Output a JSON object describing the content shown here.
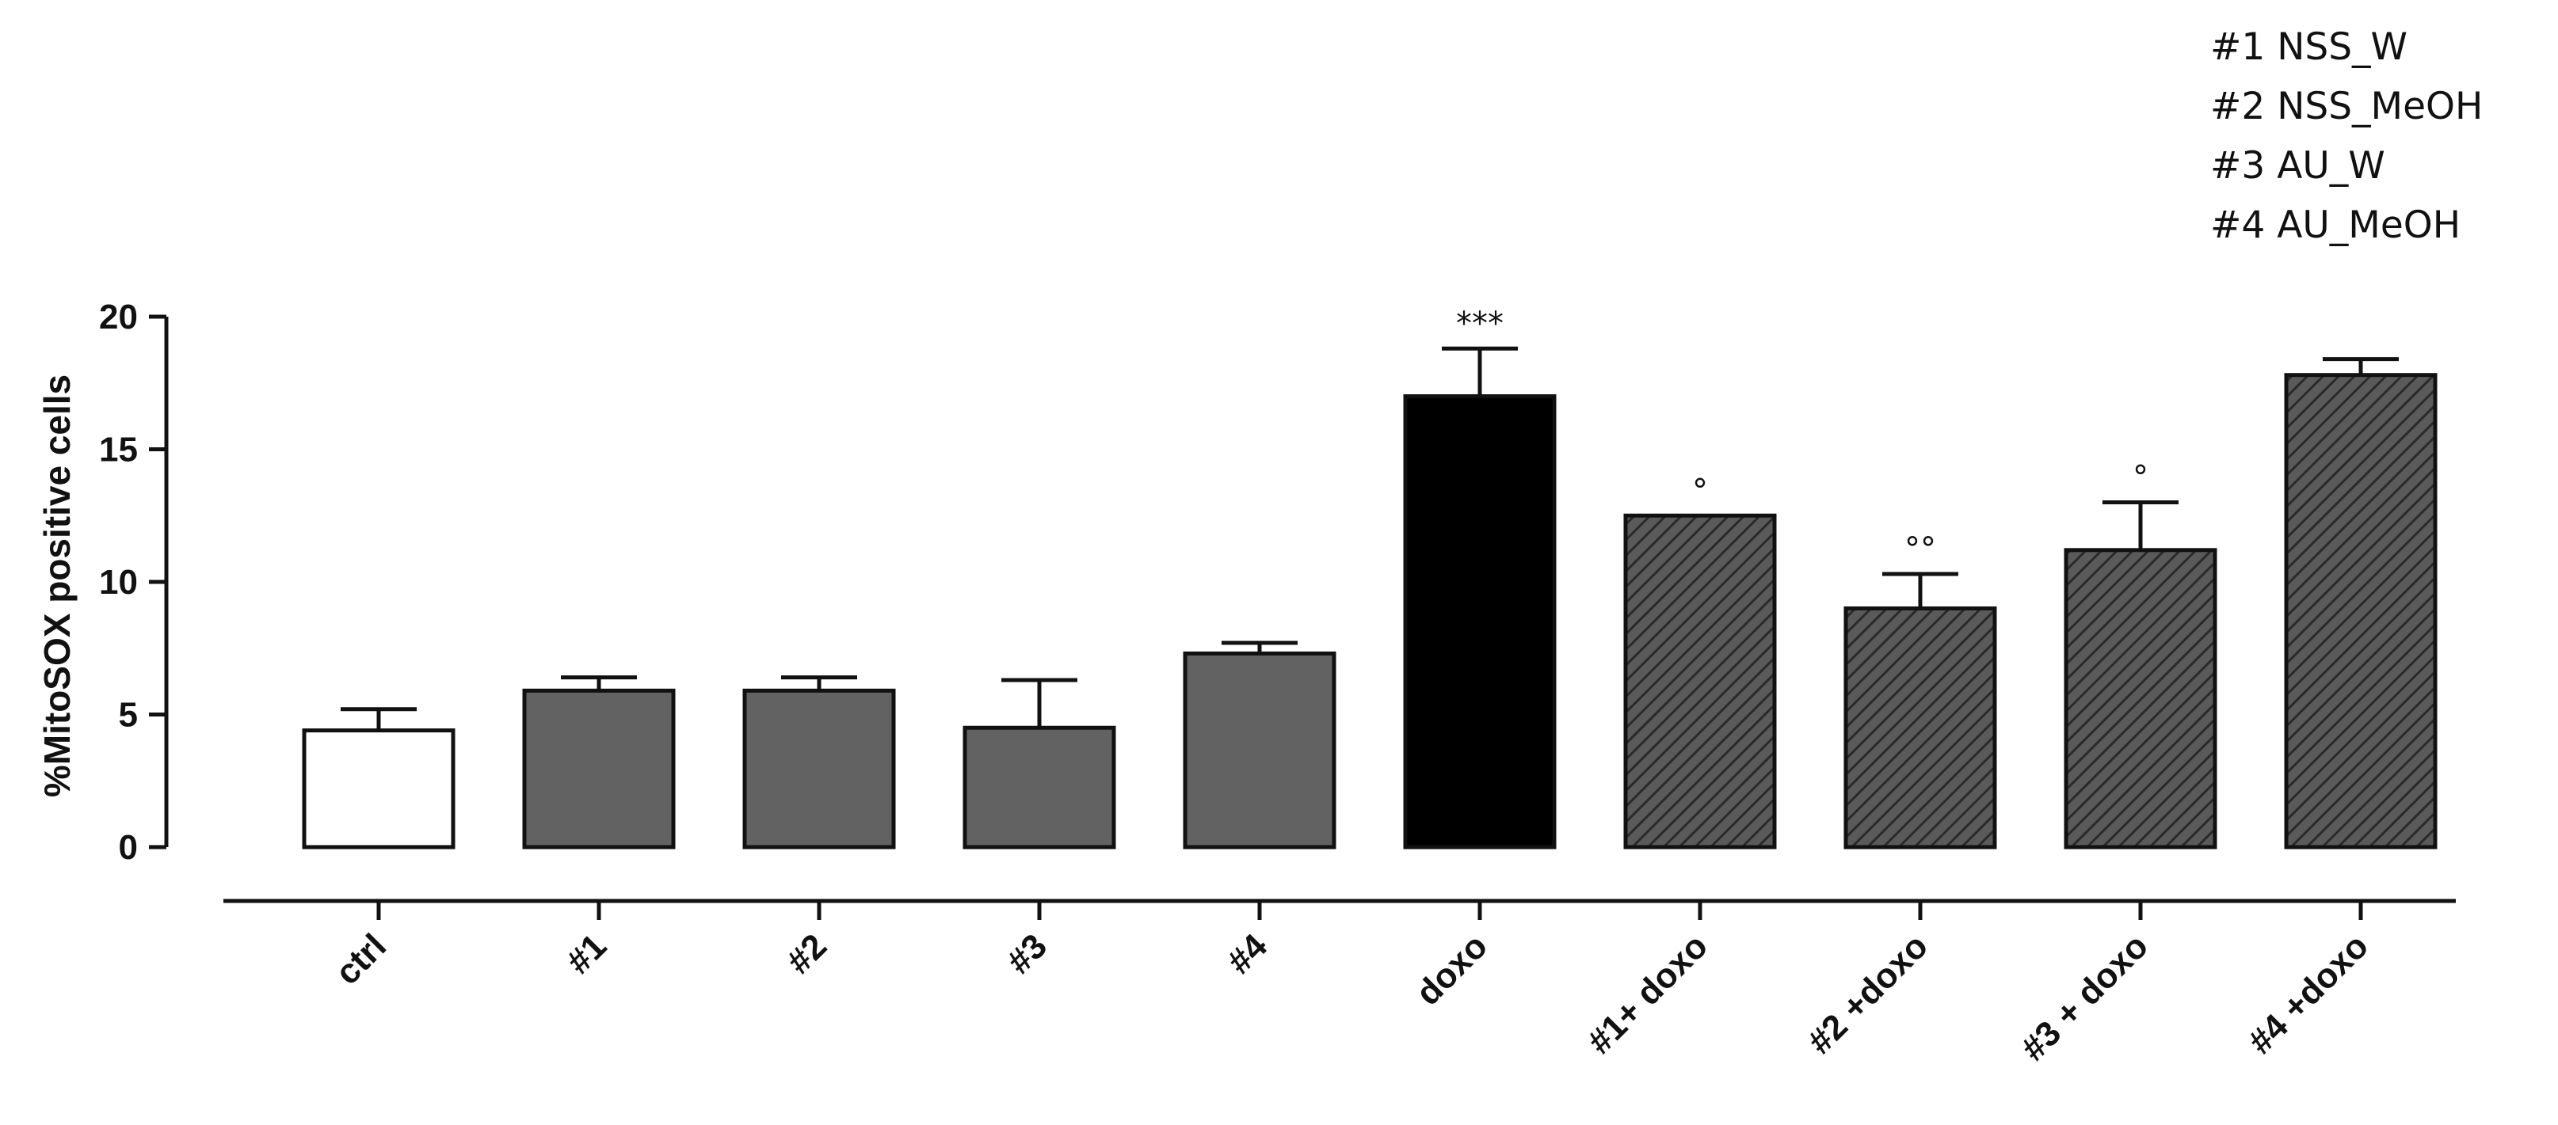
{
  "chart_data": {
    "type": "bar",
    "title": "",
    "xlabel": "",
    "ylabel": "%MitoSOX positive cells",
    "ylim": [
      0,
      20
    ],
    "yticks": [
      "0",
      "5",
      "10",
      "15",
      "20"
    ],
    "grid": false,
    "categories": [
      "ctrl",
      "#1",
      "#2",
      "#3",
      "#4",
      "doxo",
      "#1+ doxo",
      "#2 +doxo",
      "#3 + doxo",
      "#4 +doxo"
    ],
    "values": [
      4.4,
      5.9,
      5.9,
      4.5,
      7.3,
      17.0,
      12.5,
      9.0,
      11.2,
      17.8
    ],
    "errors": [
      0.8,
      0.5,
      0.5,
      1.8,
      0.4,
      1.8,
      0.0,
      1.3,
      1.8,
      0.6
    ],
    "fills": [
      "white",
      "gray",
      "gray",
      "gray",
      "gray",
      "black",
      "hatched",
      "hatched",
      "hatched",
      "hatched"
    ],
    "annotations": [
      "",
      "",
      "",
      "",
      "",
      "***",
      "°",
      "°°",
      "°",
      ""
    ],
    "colors": {
      "gray": "#626262",
      "black": "#000000",
      "white": "#ffffff",
      "hatch_bg": "#5a5a5a",
      "hatch_line": "#2a2a2a"
    },
    "legend": {
      "placement": "top-right",
      "entries": [
        "#1 NSS_W",
        "#2 NSS_MeOH",
        "#3 AU_W",
        "#4 AU_MeOH"
      ]
    }
  }
}
